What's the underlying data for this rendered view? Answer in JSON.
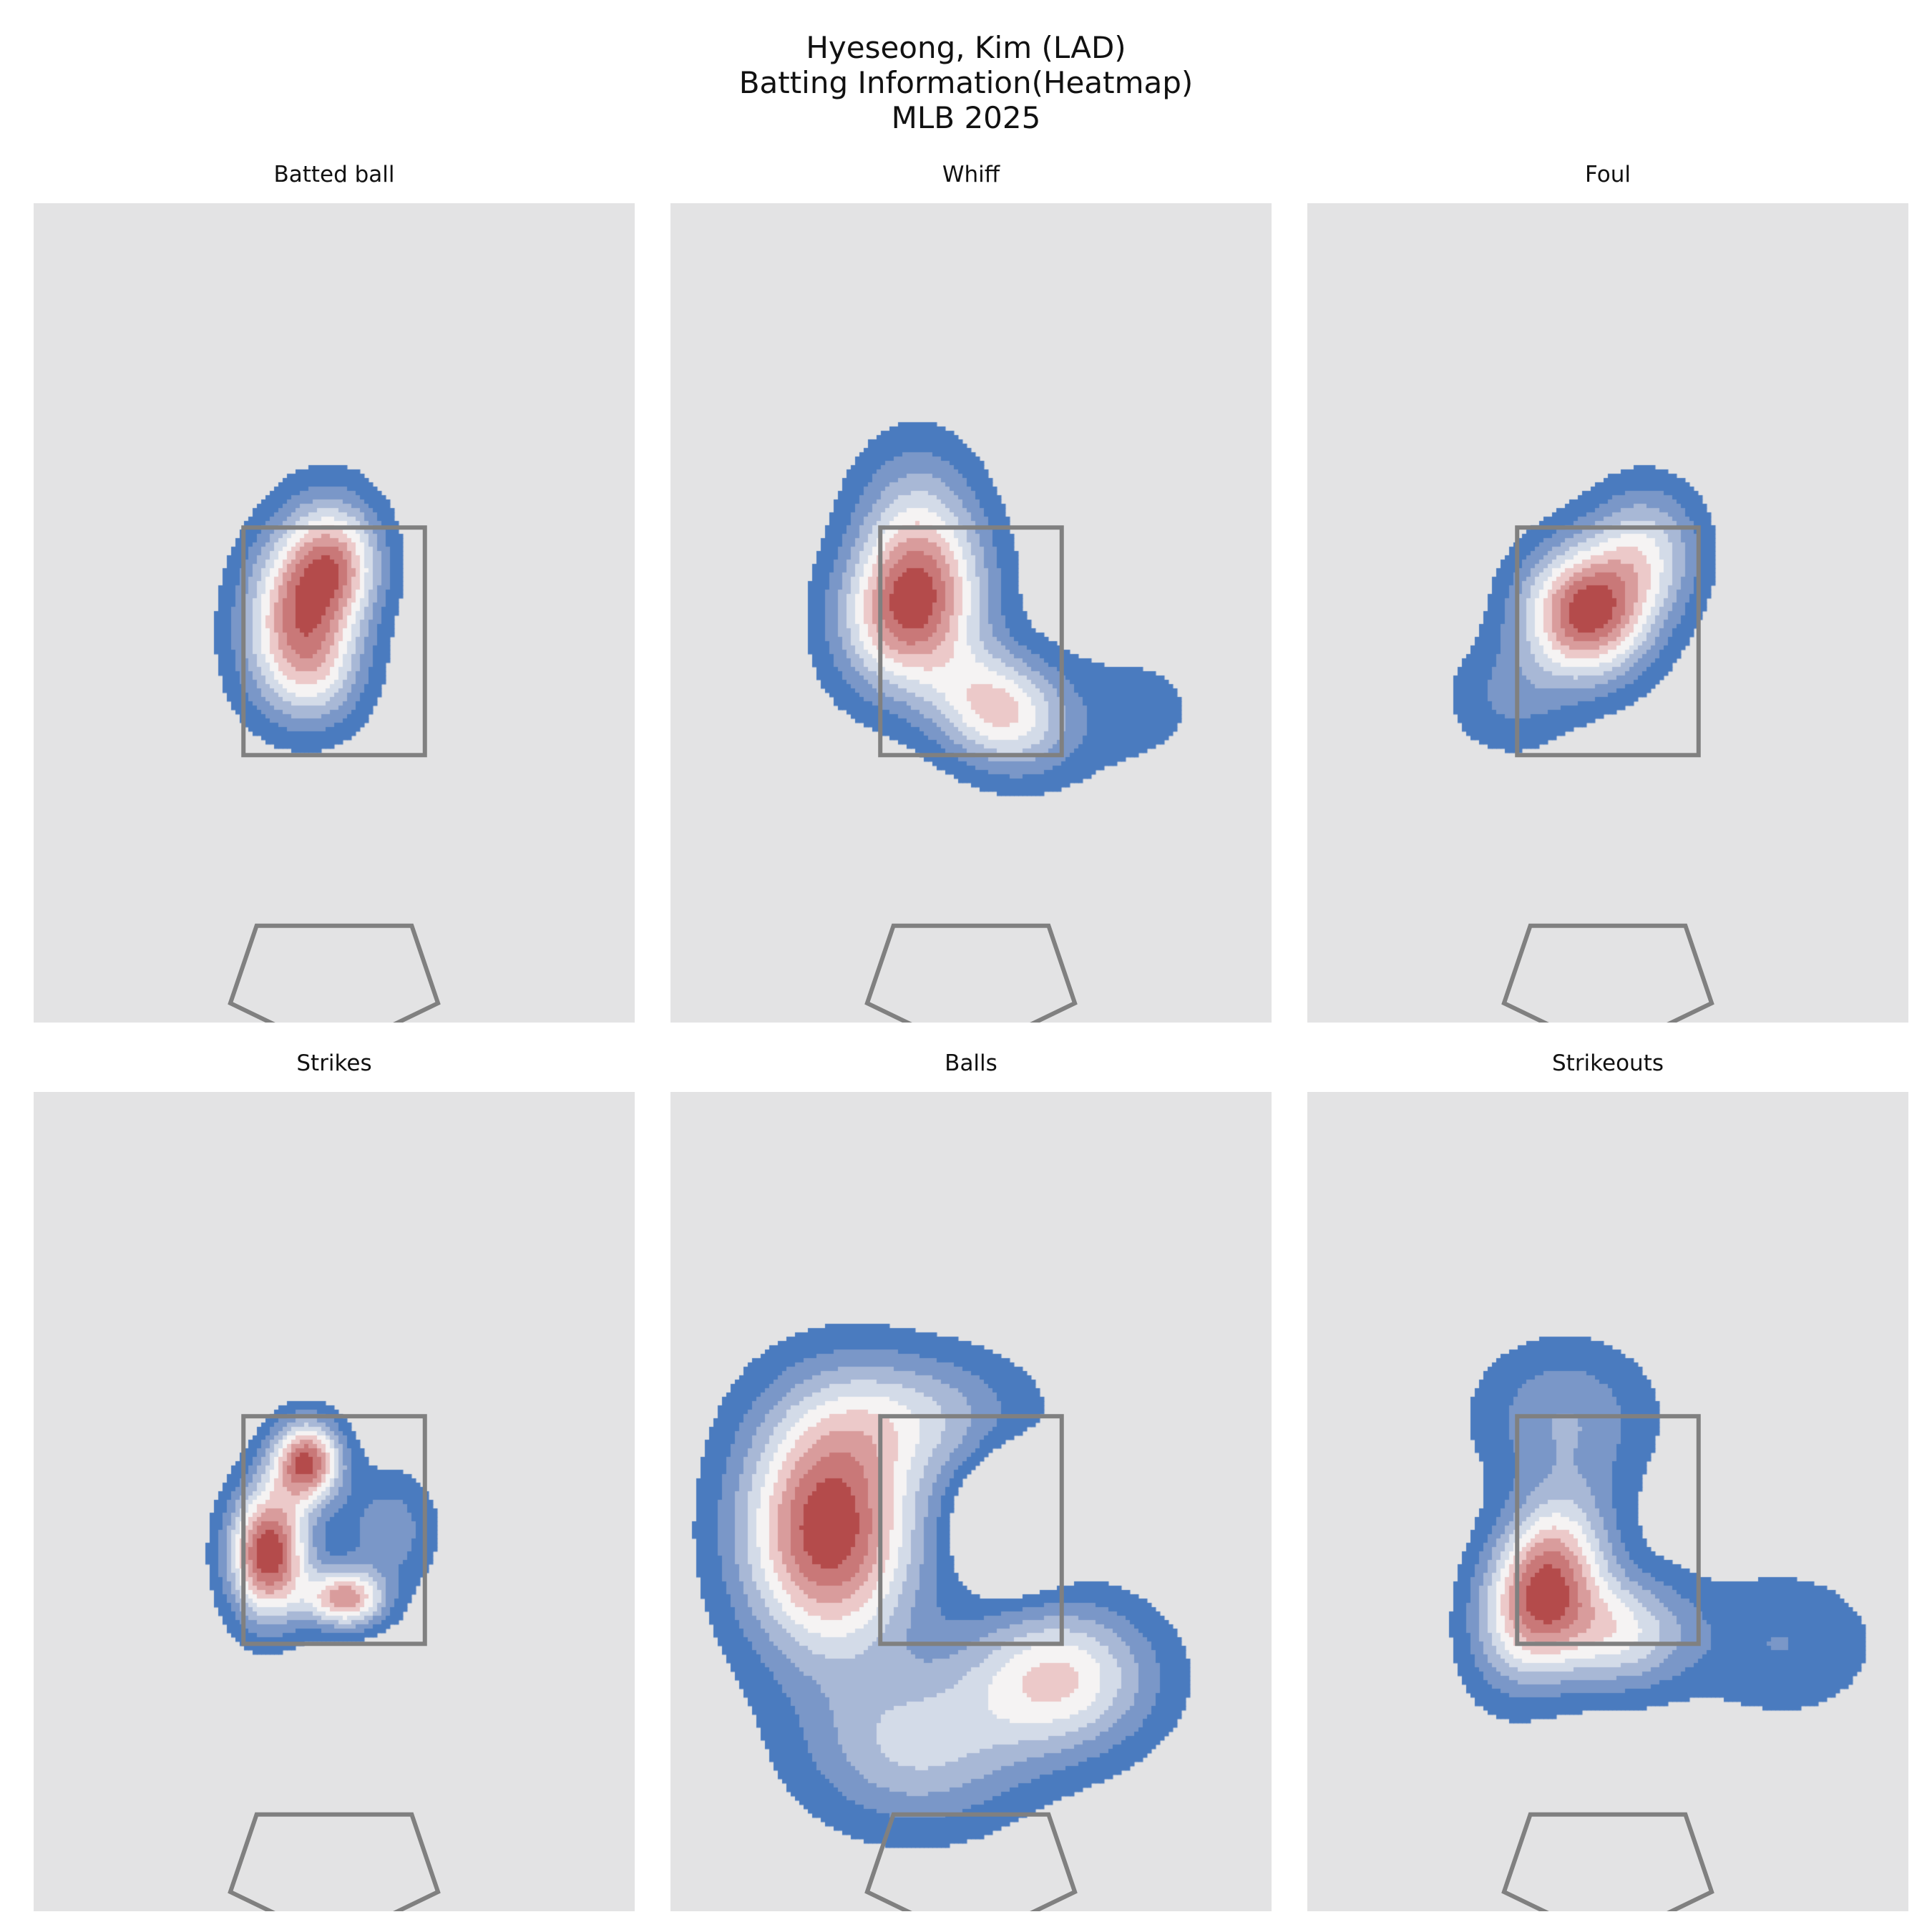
{
  "figure": {
    "title_lines": [
      "Hyeseong, Kim (LAD)",
      "Batting Information(Heatmap)",
      "MLB 2025"
    ],
    "background_color": "#ffffff"
  },
  "style": {
    "panel_background": "#e3e3e4",
    "zone_color": "#808080",
    "palette_low_to_high": [
      "#4a7bbf",
      "#7a97c8",
      "#a8b8d6",
      "#d3dbe8",
      "#f5f3f3",
      "#ecc9c9",
      "#d99c9c",
      "#c97878",
      "#b44b4b"
    ]
  },
  "chart_data": [
    {
      "type": "heatmap",
      "title": "Batted ball",
      "levels": 9,
      "hotspots": [
        {
          "x": -0.28,
          "y": 2.85,
          "sx": 0.36,
          "sy": 0.55,
          "w": 1.0,
          "rot": -15
        },
        {
          "x": 0.05,
          "y": 3.2,
          "sx": 0.28,
          "sy": 0.35,
          "w": 0.45,
          "rot": 0
        },
        {
          "x": -0.15,
          "y": 2.2,
          "sx": 0.32,
          "sy": 0.35,
          "w": 0.4,
          "rot": 0
        }
      ],
      "strike_zone": {
        "x": [
          -0.83,
          0.83
        ],
        "z": [
          1.5,
          3.5
        ]
      },
      "home_plate": "shown",
      "grid": false
    },
    {
      "type": "heatmap",
      "title": "Whiff",
      "levels": 9,
      "hotspots": [
        {
          "x": -0.55,
          "y": 2.8,
          "sx": 0.42,
          "sy": 0.5,
          "w": 1.0,
          "rot": -25
        },
        {
          "x": 0.25,
          "y": 1.9,
          "sx": 0.45,
          "sy": 0.35,
          "w": 0.7,
          "rot": -25
        },
        {
          "x": -0.5,
          "y": 3.6,
          "sx": 0.4,
          "sy": 0.5,
          "w": 0.35,
          "rot": 0
        },
        {
          "x": 1.5,
          "y": 1.9,
          "sx": 0.55,
          "sy": 0.45,
          "w": 0.12,
          "rot": 0
        }
      ],
      "strike_zone": {
        "x": [
          -0.83,
          0.83
        ],
        "z": [
          1.5,
          3.5
        ]
      },
      "home_plate": "shown",
      "grid": false
    },
    {
      "type": "heatmap",
      "title": "Foul",
      "levels": 9,
      "hotspots": [
        {
          "x": -0.2,
          "y": 2.75,
          "sx": 0.4,
          "sy": 0.4,
          "w": 1.0,
          "rot": -35
        },
        {
          "x": 0.35,
          "y": 3.3,
          "sx": 0.35,
          "sy": 0.4,
          "w": 0.45,
          "rot": 0
        },
        {
          "x": -0.9,
          "y": 2.0,
          "sx": 0.4,
          "sy": 0.35,
          "w": 0.2,
          "rot": 0
        }
      ],
      "strike_zone": {
        "x": [
          -0.83,
          0.83
        ],
        "z": [
          1.5,
          3.5
        ]
      },
      "home_plate": "shown",
      "grid": false
    },
    {
      "type": "heatmap",
      "title": "Strikes",
      "levels": 9,
      "hotspots": [
        {
          "x": -0.6,
          "y": 2.3,
          "sx": 0.25,
          "sy": 0.4,
          "w": 1.0,
          "rot": 0
        },
        {
          "x": -0.25,
          "y": 3.1,
          "sx": 0.22,
          "sy": 0.25,
          "w": 0.9,
          "rot": 0
        },
        {
          "x": 0.1,
          "y": 1.9,
          "sx": 0.25,
          "sy": 0.18,
          "w": 0.75,
          "rot": 0
        },
        {
          "x": 0.5,
          "y": 2.5,
          "sx": 0.3,
          "sy": 0.35,
          "w": 0.25,
          "rot": 0
        }
      ],
      "strike_zone": {
        "x": [
          -0.83,
          0.83
        ],
        "z": [
          1.5,
          3.5
        ]
      },
      "home_plate": "shown",
      "grid": false
    },
    {
      "type": "heatmap",
      "title": "Balls",
      "levels": 9,
      "hotspots": [
        {
          "x": -1.3,
          "y": 2.5,
          "sx": 0.55,
          "sy": 0.75,
          "w": 1.0,
          "rot": 0
        },
        {
          "x": 0.8,
          "y": 1.2,
          "sx": 0.6,
          "sy": 0.45,
          "w": 0.6,
          "rot": 0
        },
        {
          "x": -0.5,
          "y": 0.6,
          "sx": 0.7,
          "sy": 0.5,
          "w": 0.4,
          "rot": 0
        },
        {
          "x": -0.5,
          "y": 3.5,
          "sx": 0.7,
          "sy": 0.4,
          "w": 0.35,
          "rot": 0
        },
        {
          "x": 0.4,
          "y": 2.6,
          "sx": 0.3,
          "sy": 0.35,
          "w": -0.5,
          "rot": 0
        }
      ],
      "strike_zone": {
        "x": [
          -0.83,
          0.83
        ],
        "z": [
          1.5,
          3.5
        ]
      },
      "home_plate": "shown",
      "grid": false
    },
    {
      "type": "heatmap",
      "title": "Strikeouts",
      "levels": 9,
      "hotspots": [
        {
          "x": -0.6,
          "y": 2.0,
          "sx": 0.35,
          "sy": 0.55,
          "w": 1.0,
          "rot": -20
        },
        {
          "x": 0.1,
          "y": 1.6,
          "sx": 0.45,
          "sy": 0.35,
          "w": 0.55,
          "rot": 0
        },
        {
          "x": -0.4,
          "y": 3.5,
          "sx": 0.55,
          "sy": 0.45,
          "w": 0.3,
          "rot": 0
        },
        {
          "x": 1.6,
          "y": 1.5,
          "sx": 0.6,
          "sy": 0.45,
          "w": 0.2,
          "rot": 0
        }
      ],
      "strike_zone": {
        "x": [
          -0.83,
          0.83
        ],
        "z": [
          1.5,
          3.5
        ]
      },
      "home_plate": "shown",
      "grid": false
    }
  ]
}
